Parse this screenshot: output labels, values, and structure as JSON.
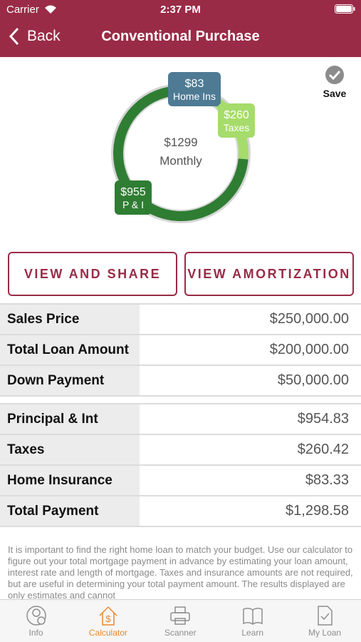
{
  "status": {
    "carrier": "Carrier",
    "time": "2:37 PM"
  },
  "nav": {
    "back": "Back",
    "title": "Conventional Purchase"
  },
  "save": "Save",
  "donut": {
    "center_value": "$1299",
    "center_label": "Monthly",
    "segments": [
      {
        "name": "Home Ins",
        "label": "$83",
        "value": 83,
        "color": "#4e7a94"
      },
      {
        "name": "Taxes",
        "label": "$260",
        "value": 260,
        "color": "#a6dc6b"
      },
      {
        "name": "P & I",
        "label": "$955",
        "value": 955,
        "color": "#2f7d33"
      }
    ]
  },
  "buttons": [
    "VIEW AND SHARE",
    "VIEW AMORTIZATION"
  ],
  "table1": [
    [
      "Sales Price",
      "$250,000.00"
    ],
    [
      "Total Loan Amount",
      "$200,000.00"
    ],
    [
      "Down Payment",
      "$50,000.00"
    ]
  ],
  "table2": [
    [
      "Principal & Int",
      "$954.83"
    ],
    [
      "Taxes",
      "$260.42"
    ],
    [
      "Home Insurance",
      "$83.33"
    ],
    [
      "Total Payment",
      "$1,298.58"
    ]
  ],
  "note": "It is important to find the right home loan to match your budget. Use our calculator to figure out your total mortgage payment in advance by estimating your loan amount, interest rate and length of mortgage. Taxes and insurance amounts are not required, but are useful in determining your total payment amount.  The results displayed are only estimates and cannot",
  "tabs": [
    "Info",
    "Calculator",
    "Scanner",
    "Learn",
    "My Loan"
  ]
}
